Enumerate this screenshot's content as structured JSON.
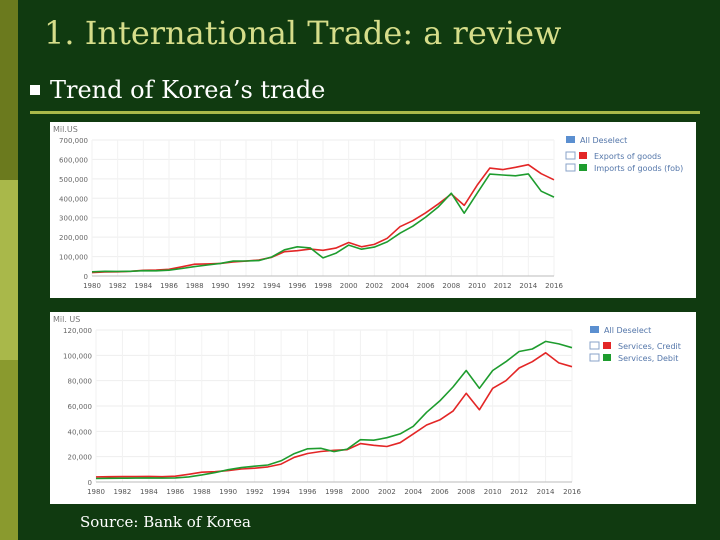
{
  "slide": {
    "title": "1. International Trade: a review",
    "bullet": "Trend of Korea’s trade",
    "source": "Source: Bank of Korea"
  },
  "colors": {
    "red": "#e32626",
    "green": "#1e9c2e",
    "panel": "#ffffff"
  },
  "chart_data": [
    {
      "type": "line",
      "unit_label": "Mil.US",
      "ylim": [
        0,
        700000
      ],
      "yticks": [
        "0",
        "100,000",
        "200,000",
        "300,000",
        "400,000",
        "500,000",
        "600,000",
        "700,000"
      ],
      "x": [
        1980,
        1981,
        1982,
        1983,
        1984,
        1985,
        1986,
        1987,
        1988,
        1989,
        1990,
        1991,
        1992,
        1993,
        1994,
        1995,
        1996,
        1997,
        1998,
        1999,
        2000,
        2001,
        2002,
        2003,
        2004,
        2005,
        2006,
        2007,
        2008,
        2009,
        2010,
        2011,
        2012,
        2013,
        2014,
        2015,
        2016
      ],
      "xticks": [
        "1980",
        "1982",
        "1984",
        "1986",
        "1988",
        "1990",
        "1992",
        "1994",
        "1996",
        "1998",
        "2000",
        "2002",
        "2004",
        "2006",
        "2008",
        "2010",
        "2012",
        "2014",
        "2016"
      ],
      "legend_title": "All Deselect",
      "series": [
        {
          "name": "Exports of goods",
          "color": "#e32626",
          "values": [
            17500,
            21000,
            21800,
            24400,
            29200,
            30300,
            34700,
            47300,
            60700,
            62400,
            65000,
            71900,
            76600,
            82200,
            96000,
            125100,
            130000,
            138600,
            132300,
            143700,
            172300,
            150400,
            162500,
            193800,
            253800,
            284400,
            325500,
            371500,
            422000,
            363500,
            466400,
            555200,
            547900,
            559600,
            572700,
            526800,
            495400
          ]
        },
        {
          "name": "Imports of goods (fob)",
          "color": "#1e9c2e",
          "values": [
            21600,
            24300,
            23500,
            24200,
            27400,
            26700,
            29700,
            38600,
            48200,
            56800,
            65100,
            76600,
            77300,
            79100,
            97800,
            135100,
            150300,
            144600,
            93300,
            116800,
            159100,
            137900,
            148600,
            175600,
            220100,
            256300,
            303100,
            356800,
            426000,
            323100,
            425200,
            524400,
            519600,
            515600,
            525500,
            436500,
            406200
          ]
        }
      ]
    },
    {
      "type": "line",
      "unit_label": "Mil. US",
      "ylim": [
        0,
        120000
      ],
      "yticks": [
        "0",
        "20,000",
        "40,000",
        "60,000",
        "80,000",
        "100,000",
        "120,000"
      ],
      "x": [
        1980,
        1981,
        1982,
        1983,
        1984,
        1985,
        1986,
        1987,
        1988,
        1989,
        1990,
        1991,
        1992,
        1993,
        1994,
        1995,
        1996,
        1997,
        1998,
        1999,
        2000,
        2001,
        2002,
        2003,
        2004,
        2005,
        2006,
        2007,
        2008,
        2009,
        2010,
        2011,
        2012,
        2013,
        2014,
        2015,
        2016
      ],
      "xticks": [
        "1980",
        "1982",
        "1984",
        "1986",
        "1988",
        "1990",
        "1992",
        "1994",
        "1996",
        "1998",
        "2000",
        "2002",
        "2004",
        "2006",
        "2008",
        "2010",
        "2012",
        "2014",
        "2016"
      ],
      "legend_title": "All Deselect",
      "series": [
        {
          "name": "Services, Credit",
          "color": "#e32626",
          "values": [
            4000,
            4200,
            4300,
            4300,
            4400,
            4200,
            4600,
            6100,
            7700,
            8100,
            9000,
            10300,
            10900,
            11900,
            14100,
            19500,
            22500,
            24100,
            25000,
            25500,
            30300,
            29000,
            28000,
            31000,
            38000,
            45000,
            49000,
            56000,
            70000,
            57000,
            74000,
            80000,
            90000,
            95000,
            102000,
            94000,
            91000
          ]
        },
        {
          "name": "Services, Debit",
          "color": "#1e9c2e",
          "values": [
            2800,
            2900,
            3000,
            3100,
            3200,
            3100,
            3200,
            4000,
            5600,
            7400,
            9700,
            11400,
            12500,
            13400,
            16700,
            22400,
            26200,
            26600,
            24000,
            26000,
            33400,
            33000,
            35000,
            38000,
            44000,
            55000,
            64000,
            75000,
            88000,
            74000,
            88000,
            95000,
            103000,
            105000,
            111000,
            109000,
            106000
          ]
        }
      ]
    }
  ]
}
